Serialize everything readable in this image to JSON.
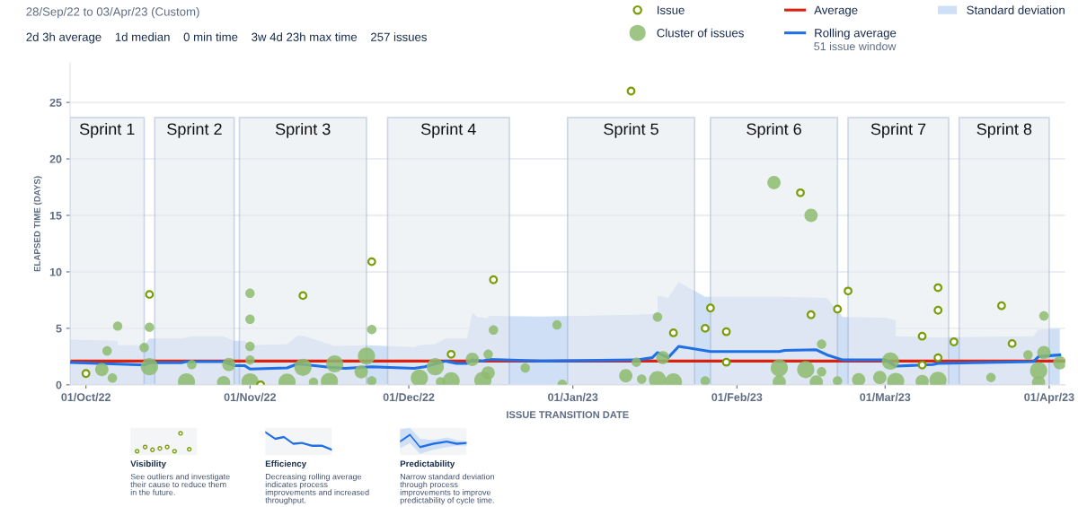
{
  "chart_data": {
    "type": "scatter",
    "title": "28/Sep/22 to 03/Apr/23 (Custom)",
    "subtitle": "2d 3h average    1d median    0 min time    3w 4d 23h max time    257 issues",
    "xlabel": "ISSUE TRANSITION DATE",
    "ylabel": "ELAPSED TIME (DAYS)",
    "xlim": [
      "2022-09-28",
      "2023-04-04"
    ],
    "ylim": [
      0,
      28.5
    ],
    "xticks": [
      {
        "value": "2022-10-01",
        "label": "01/Oct/22"
      },
      {
        "value": "2022-11-01",
        "label": "01/Nov/22"
      },
      {
        "value": "2022-12-01",
        "label": "01/Dec/22"
      },
      {
        "value": "2023-01-01",
        "label": "01/Jan/23"
      },
      {
        "value": "2023-02-01",
        "label": "01/Feb/23"
      },
      {
        "value": "2023-03-01",
        "label": "01/Mar/23"
      },
      {
        "value": "2023-04-01",
        "label": "01/Apr/23"
      }
    ],
    "yticks": [
      0,
      5,
      10,
      15,
      20,
      25
    ],
    "grid": "y",
    "legend": "top right",
    "series": [
      {
        "name": "Issue",
        "marker": "circle",
        "color": "#7a9e0a",
        "x": [
          "2022-10-01",
          "2022-10-13",
          "2022-11-03",
          "2022-11-11",
          "2022-11-24",
          "2022-12-09",
          "2022-12-17",
          "2023-01-12",
          "2023-01-20",
          "2023-01-26",
          "2023-01-27",
          "2023-01-30",
          "2023-01-30",
          "2023-02-13",
          "2023-02-15",
          "2023-02-20",
          "2023-02-22",
          "2023-03-08",
          "2023-03-08",
          "2023-03-11",
          "2023-03-11",
          "2023-03-11",
          "2023-03-14",
          "2023-03-23",
          "2023-03-25"
        ],
        "values": [
          1.0,
          8.0,
          0.0,
          7.9,
          10.9,
          2.7,
          9.3,
          26.0,
          4.6,
          5.0,
          6.8,
          4.7,
          2.0,
          17.0,
          6.2,
          6.7,
          8.3,
          4.3,
          1.75,
          2.4,
          8.6,
          6.6,
          3.8,
          7.0,
          3.65
        ]
      },
      {
        "name": "Cluster of issues",
        "type": "bubble",
        "marker": "circle",
        "color": "#8dbb6e",
        "x": [
          "2022-10-07",
          "2022-10-05",
          "2022-10-04",
          "2022-10-06",
          "2022-10-12",
          "2022-10-13",
          "2022-10-13",
          "2022-10-20",
          "2022-10-21",
          "2022-10-27",
          "2022-10-28",
          "2022-11-01",
          "2022-11-01",
          "2022-11-01",
          "2022-11-01",
          "2022-11-01",
          "2022-11-08",
          "2022-11-11",
          "2022-11-13",
          "2022-11-16",
          "2022-11-17",
          "2022-11-22",
          "2022-11-23",
          "2022-11-24",
          "2022-11-24",
          "2022-12-03",
          "2022-12-06",
          "2022-12-07",
          "2022-12-09",
          "2022-12-13",
          "2022-12-15",
          "2022-12-16",
          "2022-12-16",
          "2022-12-17",
          "2022-12-23",
          "2022-12-29",
          "2022-12-30",
          "2023-01-11",
          "2023-01-13",
          "2023-01-14",
          "2023-01-17",
          "2023-01-17",
          "2023-01-18",
          "2023-01-20",
          "2023-01-26",
          "2023-02-08",
          "2023-02-09",
          "2023-02-09",
          "2023-02-14",
          "2023-02-15",
          "2023-02-16",
          "2023-02-17",
          "2023-02-17",
          "2023-02-20",
          "2023-02-24",
          "2023-02-28",
          "2023-03-02",
          "2023-03-03",
          "2023-03-08",
          "2023-03-11",
          "2023-03-21",
          "2023-03-28",
          "2023-03-30",
          "2023-03-30",
          "2023-03-31",
          "2023-03-31",
          "2023-04-03"
        ],
        "values": [
          5.2,
          3.0,
          1.35,
          0.6,
          3.3,
          5.1,
          1.6,
          0.26,
          1.8,
          0.2,
          1.8,
          8.1,
          5.8,
          3.4,
          2.2,
          0.26,
          0.23,
          1.55,
          0.23,
          0.3,
          1.85,
          1.15,
          2.55,
          4.9,
          0.35,
          0.6,
          1.6,
          0.26,
          0.35,
          2.25,
          0.4,
          1.05,
          2.7,
          4.85,
          1.5,
          5.3,
          0.05,
          0.8,
          2.0,
          0.5,
          6.0,
          0.45,
          2.4,
          0.25,
          0.35,
          17.9,
          1.5,
          0.25,
          1.35,
          15.0,
          0.25,
          3.6,
          1.15,
          0.35,
          0.45,
          0.65,
          2.1,
          0.3,
          0.3,
          0.4,
          0.65,
          2.65,
          1.25,
          0.2,
          6.1,
          2.85,
          1.95
        ],
        "sizes": [
          0.3,
          0.3,
          0.6,
          0.3,
          0.3,
          0.3,
          1,
          1,
          0.3,
          0.6,
          0.6,
          0.3,
          0.3,
          0.3,
          0.3,
          1,
          1,
          1,
          0.3,
          1,
          1,
          0.6,
          1,
          0.3,
          0.3,
          1,
          1,
          0.3,
          1,
          0.6,
          1,
          0.6,
          0.3,
          0.3,
          0.3,
          0.3,
          0.3,
          0.6,
          0.3,
          0.3,
          0.3,
          1,
          0.6,
          1,
          0.3,
          0.6,
          1,
          0.6,
          1,
          0.6,
          0.6,
          0.3,
          0.3,
          0.3,
          0.6,
          0.6,
          1,
          1,
          0.6,
          1,
          0.3,
          0.3,
          1,
          0.6,
          0.3,
          0.6,
          0.6
        ]
      },
      {
        "name": "Rolling average",
        "type": "line",
        "color": "#1f6fe6",
        "line_style": "solid",
        "x": [
          "2022-09-28",
          "2022-10-06",
          "2022-10-12",
          "2022-10-13",
          "2022-10-19",
          "2022-10-20",
          "2022-10-27",
          "2022-10-29",
          "2022-10-31",
          "2022-11-01",
          "2022-11-08",
          "2022-11-10",
          "2022-11-16",
          "2022-11-19",
          "2022-11-24",
          "2022-12-02",
          "2022-12-04",
          "2022-12-08",
          "2022-12-10",
          "2022-12-12",
          "2022-12-13",
          "2022-12-15",
          "2022-12-16",
          "2022-12-26",
          "2023-01-13",
          "2023-01-16",
          "2023-01-17",
          "2023-01-19",
          "2023-01-21",
          "2023-01-27",
          "2023-02-09",
          "2023-02-10",
          "2023-02-16",
          "2023-02-18",
          "2023-02-21",
          "2023-03-01",
          "2023-03-03",
          "2023-03-10",
          "2023-03-11",
          "2023-03-29",
          "2023-03-30",
          "2023-04-03"
        ],
        "values": [
          1.97,
          1.85,
          1.75,
          1.95,
          1.95,
          2.05,
          2.05,
          1.7,
          1.7,
          1.4,
          1.5,
          1.85,
          1.55,
          1.45,
          1.6,
          1.45,
          1.6,
          2.1,
          1.9,
          1.9,
          2.2,
          2.1,
          2.25,
          2.1,
          2.2,
          2.4,
          2.85,
          2.4,
          3.4,
          2.95,
          2.95,
          3.05,
          3.1,
          2.65,
          2.2,
          2.2,
          1.65,
          1.8,
          1.9,
          2.05,
          2.5,
          2.65
        ]
      },
      {
        "name": "Standard deviation",
        "type": "area",
        "color": "#cfdff6",
        "x": [
          "2022-09-28",
          "2022-10-07",
          "2022-10-07",
          "2022-10-12",
          "2022-10-13",
          "2022-10-19",
          "2022-10-21",
          "2022-10-27",
          "2022-10-29",
          "2022-10-31",
          "2022-11-01",
          "2022-11-08",
          "2022-11-10",
          "2022-11-11",
          "2022-11-17",
          "2022-11-23",
          "2022-12-02",
          "2022-12-03",
          "2022-12-06",
          "2022-12-08",
          "2022-12-12",
          "2022-12-13",
          "2022-12-14",
          "2022-12-16",
          "2022-12-16",
          "2022-12-26",
          "2023-01-13",
          "2023-01-17",
          "2023-01-17",
          "2023-01-19",
          "2023-01-21",
          "2023-01-26",
          "2023-02-09",
          "2023-02-18",
          "2023-02-21",
          "2023-03-01",
          "2023-03-03",
          "2023-03-03",
          "2023-03-10",
          "2023-03-29",
          "2023-03-30",
          "2023-04-03"
        ],
        "values": [
          4.0,
          3.9,
          3.5,
          3.5,
          4.1,
          4.1,
          4.3,
          4.3,
          3.9,
          3.9,
          3.5,
          3.6,
          4.35,
          4.35,
          3.45,
          3.5,
          3.35,
          3.5,
          3.6,
          4.1,
          4.1,
          6.35,
          6.0,
          5.9,
          6.1,
          6.05,
          6.2,
          6.3,
          7.9,
          7.7,
          9.1,
          7.8,
          7.8,
          7.7,
          6.0,
          5.95,
          5.7,
          4.3,
          4.2,
          4.3,
          4.9,
          5.0
        ]
      }
    ],
    "ref_lines": [
      {
        "axis": "y",
        "value": 2.1,
        "label": "Average",
        "color": "#d9210f",
        "line_style": "solid"
      }
    ],
    "bands": [
      {
        "axis": "x",
        "from": "2022-09-28",
        "to": "2022-10-12",
        "label": "Sprint 1"
      },
      {
        "axis": "x",
        "from": "2022-10-14",
        "to": "2022-10-29",
        "label": "Sprint 2"
      },
      {
        "axis": "x",
        "from": "2022-10-30",
        "to": "2022-11-23",
        "label": "Sprint 3"
      },
      {
        "axis": "x",
        "from": "2022-11-27",
        "to": "2022-12-20",
        "label": "Sprint 4"
      },
      {
        "axis": "x",
        "from": "2022-12-31",
        "to": "2023-01-24",
        "label": "Sprint 5"
      },
      {
        "axis": "x",
        "from": "2023-01-27",
        "to": "2023-02-20",
        "label": "Sprint 6"
      },
      {
        "axis": "x",
        "from": "2023-02-22",
        "to": "2023-03-13",
        "label": "Sprint 7"
      },
      {
        "axis": "x",
        "from": "2023-03-15",
        "to": "2023-04-01",
        "label": "Sprint 8"
      }
    ],
    "annotations": [
      "51 issue window",
      "Visibility",
      "See outliers and investigate\ntheir cause to reduce them\nin the future.",
      "Efficiency",
      "Decreasing rolling average\nindicates process\nimprovements and increased\nthroughput.",
      "Predictability",
      "Narrow standard deviation\nthrough process\nimprovements to improve\npredictability of cycle time."
    ]
  }
}
